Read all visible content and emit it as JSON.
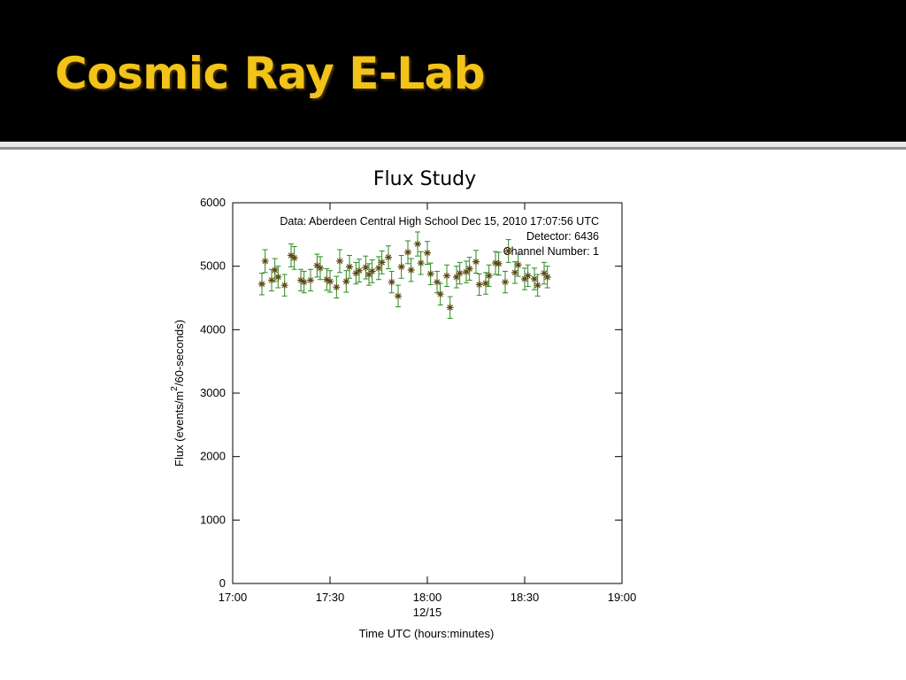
{
  "slide": {
    "title": "Cosmic Ray E-Lab"
  },
  "colors": {
    "header_bg": "#000000",
    "title_text": "#f2c318",
    "series": "#2e8b22"
  },
  "chart_data": {
    "type": "scatter",
    "title": "Flux Study",
    "xlabel": "Time UTC (hours:minutes)",
    "ylabel_main": "Flux (events/m",
    "ylabel_sup": "2",
    "ylabel_tail": "/60-seconds)",
    "xlim": [
      "17:00",
      "19:00"
    ],
    "ylim": [
      0,
      6000
    ],
    "x_ticks": [
      "17:00",
      "17:30",
      "18:00",
      "18:30",
      "19:00"
    ],
    "x_date_label": "12/15",
    "y_ticks": [
      0,
      1000,
      2000,
      3000,
      4000,
      5000,
      6000
    ],
    "annotations": [
      "Data: Aberdeen Central High School Dec 15, 2010 17:07:56 UTC",
      "Detector: 6436",
      "Channel Number: 1"
    ],
    "grid": false,
    "series": [
      {
        "marker": "asterisk-with-error-bars",
        "x": [
          "17:09",
          "17:10",
          "17:12",
          "17:13",
          "17:14",
          "17:16",
          "17:18",
          "17:19",
          "17:21",
          "17:22",
          "17:24",
          "17:26",
          "17:27",
          "17:29",
          "17:30",
          "17:32",
          "17:33",
          "17:35",
          "17:36",
          "17:38",
          "17:39",
          "17:41",
          "17:42",
          "17:43",
          "17:45",
          "17:46",
          "17:48",
          "17:49",
          "17:51",
          "17:52",
          "17:54",
          "17:55",
          "17:57",
          "17:58",
          "18:00",
          "18:01",
          "18:03",
          "18:04",
          "18:06",
          "18:07",
          "18:09",
          "18:10",
          "18:12",
          "18:13",
          "18:15",
          "18:16",
          "18:18",
          "18:19",
          "18:21",
          "18:22",
          "18:24",
          "18:25",
          "18:27",
          "18:28",
          "18:30",
          "18:31",
          "18:33",
          "18:34",
          "18:36",
          "18:37"
        ],
        "y": [
          4720,
          5080,
          4780,
          4940,
          4830,
          4700,
          5170,
          5130,
          4780,
          4750,
          4780,
          5010,
          4970,
          4790,
          4760,
          4670,
          5080,
          4760,
          4990,
          4890,
          4930,
          4980,
          4870,
          4920,
          4970,
          5060,
          5140,
          4750,
          4530,
          4990,
          5220,
          4940,
          5350,
          5050,
          5210,
          4880,
          4750,
          4560,
          4850,
          4350,
          4830,
          4890,
          4910,
          4960,
          5070,
          4710,
          4730,
          4850,
          5050,
          5040,
          4750,
          5240,
          4900,
          5020,
          4800,
          4850,
          4800,
          4700,
          4890,
          4830
        ],
        "err": [
          170,
          180,
          170,
          180,
          170,
          170,
          180,
          180,
          170,
          170,
          170,
          180,
          180,
          170,
          170,
          170,
          180,
          170,
          180,
          170,
          180,
          180,
          170,
          180,
          180,
          180,
          180,
          170,
          170,
          180,
          180,
          180,
          190,
          180,
          180,
          170,
          170,
          170,
          170,
          170,
          170,
          170,
          170,
          180,
          180,
          170,
          170,
          170,
          180,
          180,
          170,
          180,
          170,
          180,
          170,
          170,
          170,
          170,
          170,
          170
        ]
      }
    ]
  }
}
